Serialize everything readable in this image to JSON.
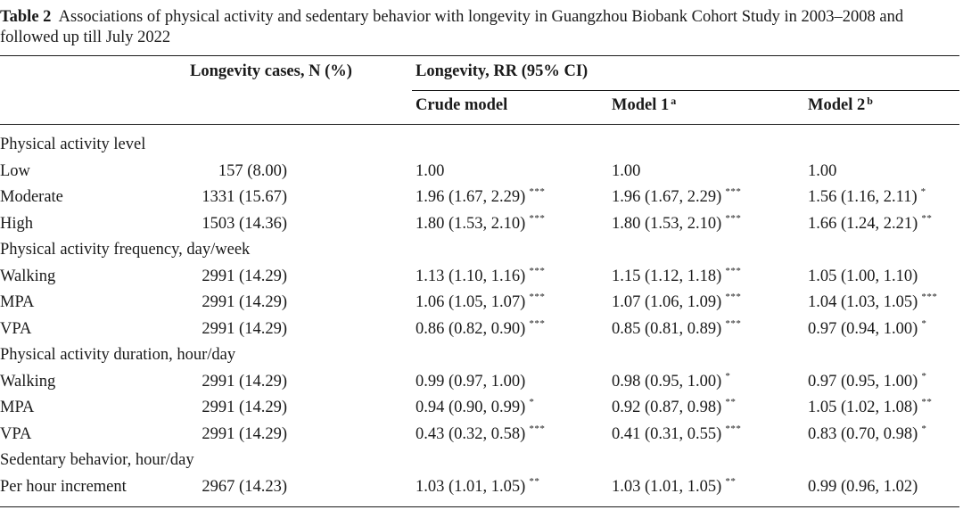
{
  "caption": {
    "label": "Table 2",
    "text": "Associations of physical activity and sedentary behavior with longevity in Guangzhou Biobank Cohort Study in 2003–2008 and followed up till July 2022"
  },
  "header": {
    "cases": "Longevity cases, N (%)",
    "rr": "Longevity, RR (95% CI)",
    "crude": "Crude model",
    "model1": "Model 1",
    "model1_sup": "a",
    "model2": "Model 2",
    "model2_sup": "b"
  },
  "rows": [
    {
      "label": "Physical activity level",
      "n": "",
      "crude": "",
      "crude_sig": "",
      "m1": "",
      "m1_sig": "",
      "m2": "",
      "m2_sig": ""
    },
    {
      "label": "Low",
      "n": "157 (8.00)",
      "crude": "1.00",
      "crude_sig": "",
      "m1": "1.00",
      "m1_sig": "",
      "m2": "1.00",
      "m2_sig": ""
    },
    {
      "label": "Moderate",
      "n": "1331 (15.67)",
      "crude": "1.96 (1.67, 2.29)",
      "crude_sig": "***",
      "m1": "1.96 (1.67, 2.29)",
      "m1_sig": "***",
      "m2": "1.56 (1.16, 2.11)",
      "m2_sig": "*"
    },
    {
      "label": "High",
      "n": "1503 (14.36)",
      "crude": "1.80 (1.53, 2.10)",
      "crude_sig": "***",
      "m1": "1.80 (1.53, 2.10)",
      "m1_sig": "***",
      "m2": "1.66 (1.24, 2.21)",
      "m2_sig": "**"
    },
    {
      "label": "Physical activity frequency, day/week",
      "n": "",
      "crude": "",
      "crude_sig": "",
      "m1": "",
      "m1_sig": "",
      "m2": "",
      "m2_sig": ""
    },
    {
      "label": "Walking",
      "n": "2991 (14.29)",
      "crude": "1.13 (1.10, 1.16)",
      "crude_sig": "***",
      "m1": "1.15 (1.12, 1.18)",
      "m1_sig": "***",
      "m2": "1.05 (1.00, 1.10)",
      "m2_sig": ""
    },
    {
      "label": "MPA",
      "n": "2991 (14.29)",
      "crude": "1.06 (1.05, 1.07)",
      "crude_sig": "***",
      "m1": "1.07 (1.06, 1.09)",
      "m1_sig": "***",
      "m2": "1.04 (1.03, 1.05)",
      "m2_sig": "***"
    },
    {
      "label": "VPA",
      "n": "2991 (14.29)",
      "crude": "0.86 (0.82, 0.90)",
      "crude_sig": "***",
      "m1": "0.85 (0.81, 0.89)",
      "m1_sig": "***",
      "m2": "0.97 (0.94, 1.00)",
      "m2_sig": "*"
    },
    {
      "label": "Physical activity duration, hour/day",
      "n": "",
      "crude": "",
      "crude_sig": "",
      "m1": "",
      "m1_sig": "",
      "m2": "",
      "m2_sig": ""
    },
    {
      "label": "Walking",
      "n": "2991 (14.29)",
      "crude": "0.99 (0.97, 1.00)",
      "crude_sig": "",
      "m1": "0.98 (0.95, 1.00)",
      "m1_sig": "*",
      "m2": "0.97 (0.95, 1.00)",
      "m2_sig": "*"
    },
    {
      "label": "MPA",
      "n": "2991 (14.29)",
      "crude": "0.94 (0.90, 0.99)",
      "crude_sig": "*",
      "m1": "0.92 (0.87, 0.98)",
      "m1_sig": "**",
      "m2": "1.05 (1.02, 1.08)",
      "m2_sig": "**"
    },
    {
      "label": "VPA",
      "n": "2991 (14.29)",
      "crude": "0.43 (0.32, 0.58)",
      "crude_sig": "***",
      "m1": "0.41 (0.31, 0.55)",
      "m1_sig": "***",
      "m2": "0.83 (0.70, 0.98)",
      "m2_sig": "*"
    },
    {
      "label": "Sedentary behavior, hour/day",
      "n": "",
      "crude": "",
      "crude_sig": "",
      "m1": "",
      "m1_sig": "",
      "m2": "",
      "m2_sig": ""
    },
    {
      "label": "Per hour increment",
      "n": "2967 (14.23)",
      "crude": "1.03 (1.01, 1.05)",
      "crude_sig": "**",
      "m1": "1.03 (1.01, 1.05)",
      "m1_sig": "**",
      "m2": "0.99 (0.96, 1.02)",
      "m2_sig": ""
    }
  ]
}
